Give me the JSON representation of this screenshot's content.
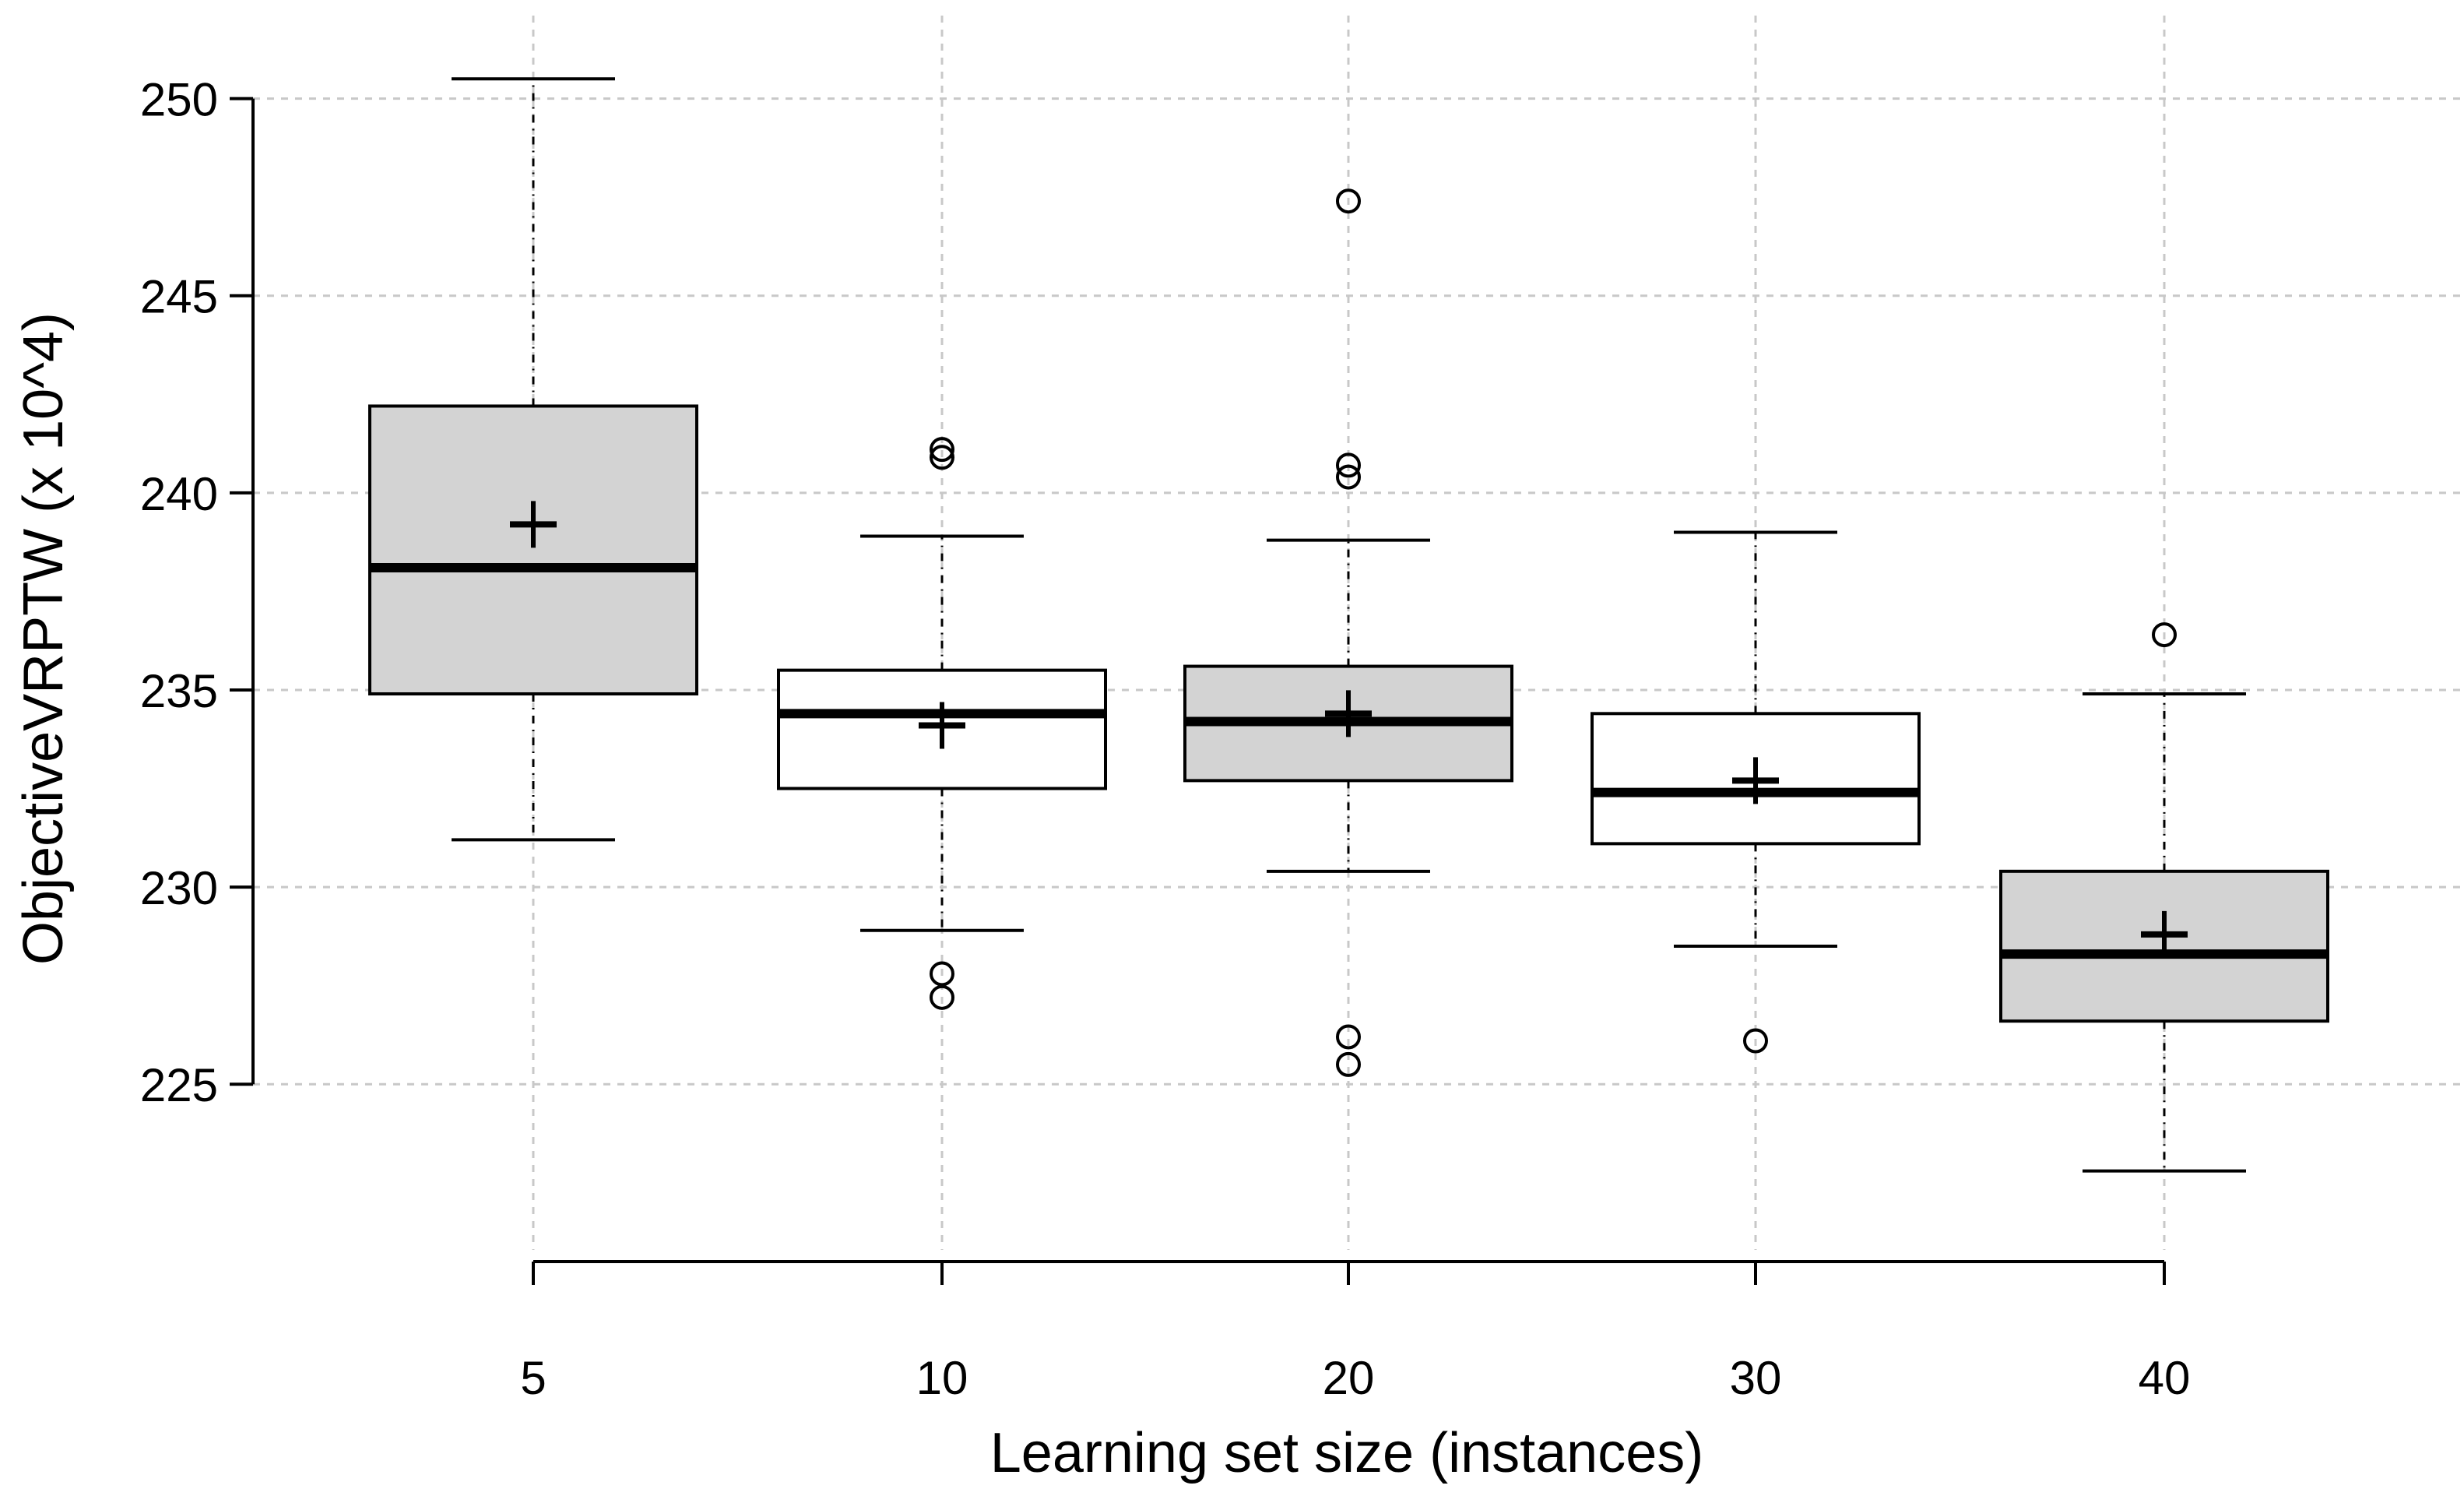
{
  "chart_data": {
    "type": "boxplot",
    "title": "",
    "xlabel": "Learning set size (instances)",
    "ylabel": "ObjectiveVRPTW (x 10^4)",
    "ylim": [
      220.5,
      252.5
    ],
    "y_ticks": [
      225,
      230,
      235,
      240,
      245,
      250
    ],
    "y_tick_labels": [
      "225",
      "230",
      "235",
      "240",
      "245",
      "250"
    ],
    "grid": true,
    "categories": [
      "5",
      "10",
      "20",
      "30",
      "40"
    ],
    "boxes": [
      {
        "label": "5",
        "filled": true,
        "whisker_low": 231.2,
        "q1": 234.9,
        "median": 238.1,
        "q3": 242.2,
        "whisker_high": 250.5,
        "mean": 239.2,
        "outliers": []
      },
      {
        "label": "10",
        "filled": false,
        "whisker_low": 228.9,
        "q1": 232.5,
        "median": 234.4,
        "q3": 235.5,
        "whisker_high": 238.9,
        "mean": 234.1,
        "outliers": [
          241.1,
          240.9,
          227.8,
          227.2
        ]
      },
      {
        "label": "20",
        "filled": true,
        "whisker_low": 230.4,
        "q1": 232.7,
        "median": 234.2,
        "q3": 235.6,
        "whisker_high": 238.8,
        "mean": 234.4,
        "outliers": [
          247.4,
          240.7,
          240.4,
          226.2,
          225.5
        ]
      },
      {
        "label": "30",
        "filled": false,
        "whisker_low": 228.5,
        "q1": 231.1,
        "median": 232.4,
        "q3": 234.4,
        "whisker_high": 239.0,
        "mean": 232.7,
        "outliers": [
          226.1
        ]
      },
      {
        "label": "40",
        "filled": true,
        "whisker_low": 222.8,
        "q1": 226.6,
        "median": 228.3,
        "q3": 230.4,
        "whisker_high": 234.9,
        "mean": 228.8,
        "outliers": [
          236.4
        ]
      }
    ],
    "colors": {
      "box_fill": "#d3d3d3",
      "box_empty": "#ffffff",
      "stroke": "#000000",
      "grid": "#c8c8c8"
    }
  }
}
